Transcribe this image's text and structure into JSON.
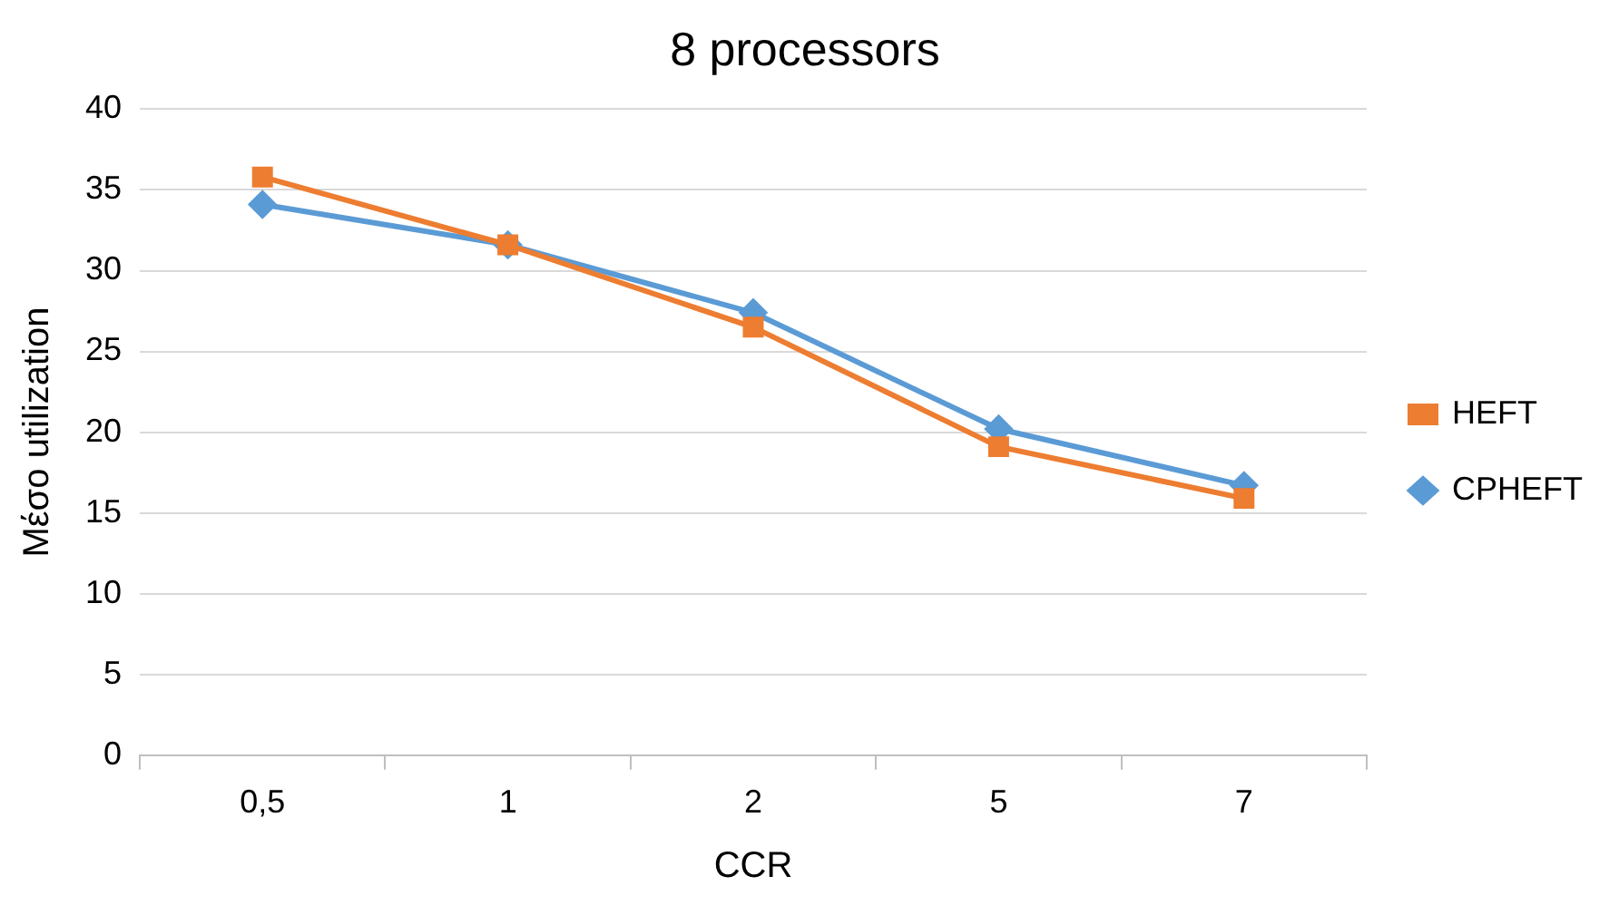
{
  "chart_data": {
    "type": "line",
    "title": "8 processors",
    "xlabel": "CCR",
    "ylabel": "Μέσο utilization",
    "categories": [
      "0,5",
      "1",
      "2",
      "5",
      "7"
    ],
    "series": [
      {
        "name": "CPHEFT",
        "color": "#5b9bd5",
        "marker": "diamond",
        "values": [
          34.1,
          31.6,
          27.4,
          20.2,
          16.7
        ]
      },
      {
        "name": "HEFT",
        "color": "#ed7d31",
        "marker": "square",
        "values": [
          35.8,
          31.6,
          26.5,
          19.1,
          15.9
        ]
      }
    ],
    "ylim": [
      0,
      40
    ],
    "yticks": [
      0,
      5,
      10,
      15,
      20,
      25,
      30,
      35,
      40
    ],
    "grid": "y",
    "legend": "right",
    "line_style": "solid"
  }
}
